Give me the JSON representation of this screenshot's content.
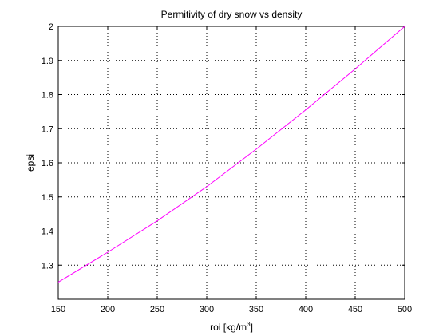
{
  "chart_data": {
    "type": "line",
    "title": "Permitivity of dry snow vs density",
    "xlabel": "roi [kg/m",
    "xlabel_superscript": "3",
    "xlabel_suffix": "]",
    "ylabel": "epsi",
    "xlim": [
      150,
      500
    ],
    "ylim": [
      1.2,
      2.0
    ],
    "xticks": [
      150,
      200,
      250,
      300,
      350,
      400,
      450,
      500
    ],
    "yticks": [
      1.3,
      1.4,
      1.5,
      1.6,
      1.7,
      1.8,
      1.9,
      2.0
    ],
    "ytick_labels": [
      "1.3",
      "1.4",
      "1.5",
      "1.6",
      "1.7",
      "1.8",
      "1.9",
      "2"
    ],
    "grid": true,
    "series": [
      {
        "color": "#ff00ff",
        "x": [
          150,
          200,
          250,
          300,
          350,
          400,
          450,
          500
        ],
        "y": [
          1.25,
          1.338,
          1.43,
          1.53,
          1.64,
          1.755,
          1.875,
          2.0
        ]
      }
    ]
  }
}
